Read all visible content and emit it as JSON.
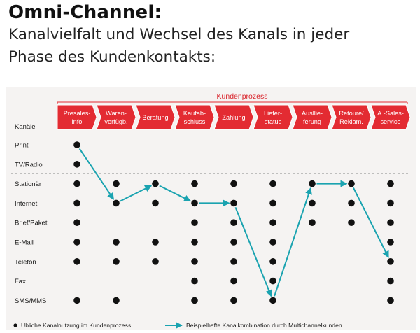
{
  "title": "Omni-Channel:",
  "subtitle_lines": [
    "Kanalvielfalt und Wechsel des Kanals in jeder",
    "Phase des Kundenkontakts:"
  ],
  "process_label": "Kundenprozess",
  "channels_header": "Kanäle",
  "phases": [
    [
      "Presales-",
      "info"
    ],
    [
      "Waren-",
      "verfügb."
    ],
    [
      "Beratung"
    ],
    [
      "Kaufab-",
      "schluss"
    ],
    [
      "Zahlung"
    ],
    [
      "Liefer-",
      "status"
    ],
    [
      "Ausllie-",
      "ferung"
    ],
    [
      "Retoure/",
      "Reklam."
    ],
    [
      "A.-Sales-",
      "service"
    ]
  ],
  "channels": [
    "Print",
    "TV/Radio",
    "Stationär",
    "Internet",
    "Brief/Paket",
    "E-Mail",
    "Telefon",
    "Fax",
    "SMS/MMS"
  ],
  "usage_matrix": [
    [
      1,
      0,
      0,
      0,
      0,
      0,
      0,
      0,
      0
    ],
    [
      1,
      0,
      0,
      0,
      0,
      0,
      0,
      0,
      0
    ],
    [
      1,
      1,
      1,
      1,
      1,
      1,
      1,
      1,
      1
    ],
    [
      1,
      1,
      1,
      1,
      1,
      1,
      1,
      1,
      1
    ],
    [
      1,
      0,
      0,
      1,
      1,
      1,
      1,
      1,
      1
    ],
    [
      1,
      1,
      1,
      1,
      1,
      1,
      0,
      0,
      1
    ],
    [
      1,
      1,
      1,
      1,
      1,
      1,
      0,
      0,
      1
    ],
    [
      0,
      0,
      0,
      1,
      1,
      1,
      0,
      0,
      1
    ],
    [
      1,
      1,
      0,
      1,
      1,
      1,
      0,
      0,
      1
    ]
  ],
  "example_path": [
    [
      0,
      0
    ],
    [
      1,
      3
    ],
    [
      2,
      2
    ],
    [
      3,
      3
    ],
    [
      4,
      3
    ],
    [
      5,
      8
    ],
    [
      6,
      2
    ],
    [
      7,
      2
    ],
    [
      8,
      6
    ]
  ],
  "separator_after_channel": 1,
  "legend": {
    "dot_label": "Übliche Kanalnutzung im Kundenprozess",
    "arrow_label": "Beispielhafte Kanalkombination durch Multichannelkunden"
  },
  "colors": {
    "band": "#e32b32",
    "band_text": "#ffffff",
    "process_label": "#d9232b",
    "dot": "#111111",
    "arrow": "#1aa3b0"
  }
}
